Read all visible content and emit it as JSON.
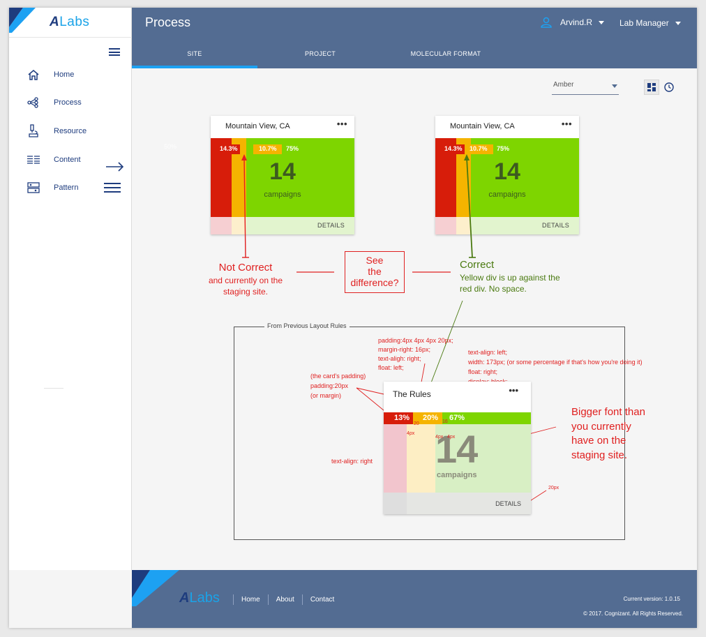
{
  "app": {
    "logo_a": "A",
    "logo_labs": "Labs"
  },
  "sidebar": {
    "items": [
      {
        "label": "Home",
        "icon": "home-icon"
      },
      {
        "label": "Process",
        "icon": "process-icon"
      },
      {
        "label": "Resource",
        "icon": "microscope-icon"
      },
      {
        "label": "Content",
        "icon": "content-icon"
      },
      {
        "label": "Pattern",
        "icon": "pattern-icon"
      }
    ]
  },
  "header": {
    "title": "Process",
    "user": "Arvind.R",
    "role": "Lab Manager",
    "tabs": [
      {
        "label": "SITE",
        "active": true
      },
      {
        "label": "PROJECT",
        "active": false
      },
      {
        "label": "MOLECULAR FORMAT",
        "active": false
      }
    ]
  },
  "filter": {
    "selected": "Amber"
  },
  "cards": {
    "incorrect": {
      "title": "Mountain View, CA",
      "menu": "•••",
      "red_pct": "14.3%",
      "yellow_pct": "10.7%",
      "green_pct": "75%",
      "count": "14",
      "unit": "campaigns",
      "details": "DETAILS",
      "ghost": "50%"
    },
    "correct": {
      "title": "Mountain View, CA",
      "menu": "•••",
      "red_pct": "14.3%",
      "yellow_pct": "10.7%",
      "green_pct": "75%",
      "count": "14",
      "unit": "campaigns",
      "details": "DETAILS"
    },
    "rules": {
      "title": "The Rules",
      "menu": "•••",
      "red_pct": "13%",
      "yellow_pct": "20%",
      "green_pct": "67%",
      "count": "14",
      "unit": "campaigns",
      "details": "DETAILS"
    }
  },
  "annotations": {
    "not_correct_title": "Not Correct",
    "not_correct_line1": "and currently on the",
    "not_correct_line2": "staging site.",
    "see_line1": "See",
    "see_line2": "the",
    "see_line3": "difference?",
    "correct_title": "Correct",
    "correct_line1": "Yellow div is up against the",
    "correct_line2": "red div. No space.",
    "rules_label": "From Previous Layout Rules",
    "yellow_rules": [
      "padding:4px 4px 4px 20px;",
      "margin-right: 16px;",
      "text-aligh: right;",
      "float: left;"
    ],
    "green_rules": [
      "text-align: left;",
      "width: 173px; (or some percentage if that's how you're doing it)",
      "float: right;",
      "display: block;"
    ],
    "padding_rules": [
      "(the card's padding)",
      "padding:20px",
      "(or margin)"
    ],
    "text_align_right": "text-align: right",
    "bigger_font": [
      "Bigger font than",
      "you currently",
      "have on the",
      "staging site."
    ],
    "px20": "20px",
    "dim_20": "20",
    "dim_4px_a": "4px",
    "dim_16": "16",
    "dim_4px_b": "4px",
    "dim_4px_c": "4px"
  },
  "footer": {
    "links": [
      "Home",
      "About",
      "Contact"
    ],
    "version": "Current version: 1.0.15",
    "copyright": "© 2017. Cognizant. All Rights Reserved."
  },
  "colors": {
    "header_bg": "#536c92",
    "red": "#d71d0a",
    "yellow": "#f5b400",
    "green": "#7ed500",
    "accent": "#1da1f2",
    "annotation_red": "#e02020",
    "annotation_green": "#4a7a10"
  }
}
